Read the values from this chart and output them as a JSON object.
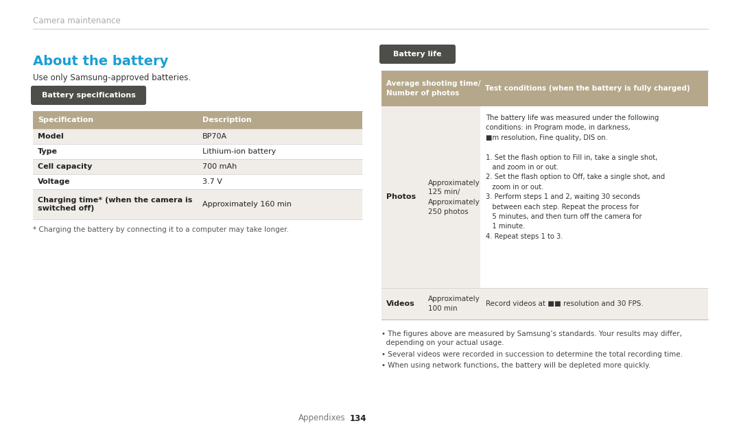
{
  "bg_color": "#ffffff",
  "header_text": "Camera maintenance",
  "header_color": "#aaaaaa",
  "about_title": "About the battery",
  "about_title_color": "#1a9ed4",
  "about_subtitle": "Use only Samsung-approved batteries.",
  "battery_spec_badge_text": "Battery specifications",
  "badge_color": "#4d4d4a",
  "spec_header_bg": "#b5a78a",
  "spec_row_odd": "#f0ede8",
  "spec_row_even": "#ffffff",
  "spec_rows": [
    [
      "Specification",
      "Description"
    ],
    [
      "Model",
      "BP70A"
    ],
    [
      "Type",
      "Lithium-ion battery"
    ],
    [
      "Cell capacity",
      "700 mAh"
    ],
    [
      "Voltage",
      "3.7 V"
    ],
    [
      "Charging time* (when the camera is\nswitched off)",
      "Approximately 160 min"
    ]
  ],
  "footnote": "* Charging the battery by connecting it to a computer may take longer.",
  "battery_life_badge_text": "Battery life",
  "life_header_col1": "Average shooting time/\nNumber of photos",
  "life_header_col2": "Test conditions (when the battery is fully charged)",
  "photos_time": "Approximately\n125 min/\nApproximately\n250 photos",
  "conditions_text": "The battery life was measured under the following\nconditions: in Program mode, in darkness,\n■m resolution, Fine quality, DIS on.\n\n1. Set the flash option to Fill in, take a single shot,\n   and zoom in or out.\n2. Set the flash option to Off, take a single shot, and\n   zoom in or out.\n3. Perform steps 1 and 2, waiting 30 seconds\n   between each step. Repeat the process for\n   5 minutes, and then turn off the camera for\n   1 minute.\n4. Repeat steps 1 to 3.",
  "videos_time": "Approximately\n100 min",
  "videos_cond": "Record videos at ■■ resolution and 30 FPS.",
  "bullet1": "• The figures above are measured by Samsung’s standards. Your results may differ,\n  depending on your actual usage.",
  "bullet2": "• Several videos were recorded in succession to determine the total recording time.",
  "bullet3": "• When using network functions, the battery will be depleted more quickly.",
  "footer_text": "Appendixes",
  "footer_page": "134"
}
